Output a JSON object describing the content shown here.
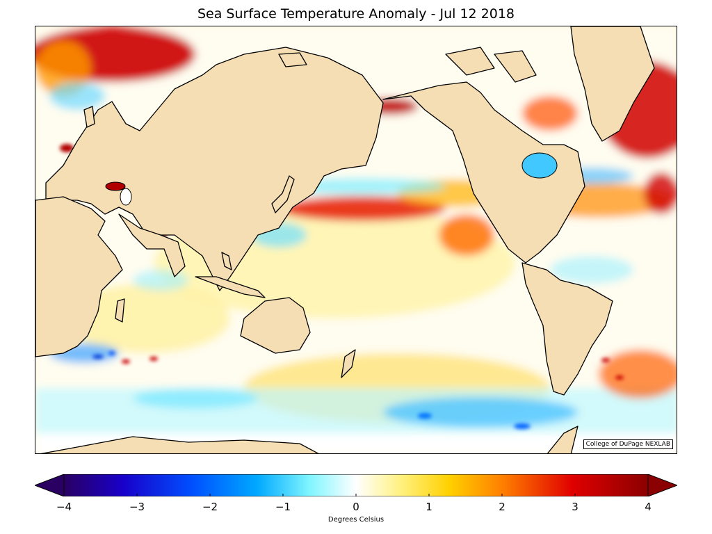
{
  "figure": {
    "title": "Sea Surface Temperature Anomaly - Jul 12 2018",
    "credit": "College of DuPage NEXLAB",
    "units_label": "Degrees Celsius"
  },
  "colorbar": {
    "min": -4,
    "max": 4,
    "ticks": [
      "−4",
      "−3",
      "−2",
      "−1",
      "0",
      "1",
      "2",
      "3",
      "4"
    ],
    "colors": [
      "#2a0063",
      "#1800c8",
      "#0050ff",
      "#00a8ff",
      "#7ff5ff",
      "#ffffff",
      "#fff07a",
      "#ffd000",
      "#ff8000",
      "#e00000",
      "#8b0000"
    ]
  },
  "map": {
    "land_color": "#f5deb3",
    "ocean_neutral": "#ffffff"
  }
}
